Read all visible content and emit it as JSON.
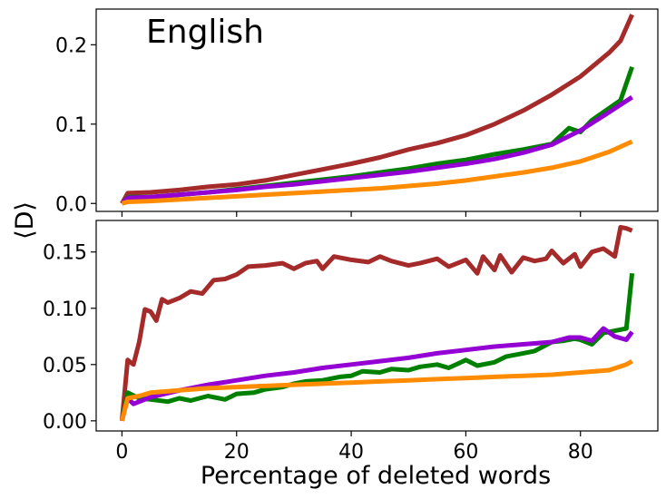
{
  "colors": {
    "brown": "#A52A2A",
    "green": "#008000",
    "purple": "#9400D3",
    "orange": "#FF8C00"
  },
  "chart_data": {
    "type": "line",
    "shared_ylabel": "⟨D⟩",
    "xlabel": "Percentage of deleted words",
    "x_ticks": [
      "0",
      "20",
      "40",
      "60",
      "80"
    ],
    "x_ticks_values": [
      0,
      20,
      40,
      60,
      80
    ],
    "xlim": [
      -4.5,
      93.5
    ],
    "panels": [
      {
        "panel_label": "English",
        "ylim": [
          -0.01,
          0.245
        ],
        "y_ticks": [
          "0.0",
          "0.1",
          "0.2"
        ],
        "y_ticks_values": [
          0.0,
          0.1,
          0.2
        ],
        "series": [
          {
            "color": "#A52A2A",
            "x": [
              0,
              1,
              5,
              10,
              15,
              20,
              25,
              30,
              35,
              40,
              45,
              50,
              55,
              60,
              65,
              70,
              75,
              80,
              85,
              87,
              89
            ],
            "values": [
              0.0,
              0.013,
              0.014,
              0.017,
              0.021,
              0.024,
              0.029,
              0.036,
              0.043,
              0.05,
              0.058,
              0.068,
              0.076,
              0.086,
              0.1,
              0.117,
              0.137,
              0.16,
              0.19,
              0.205,
              0.238
            ]
          },
          {
            "color": "#008000",
            "x": [
              0,
              1,
              5,
              10,
              15,
              20,
              25,
              30,
              35,
              40,
              45,
              50,
              55,
              60,
              65,
              70,
              75,
              78,
              80,
              82,
              85,
              87,
              89
            ],
            "values": [
              0.0,
              0.008,
              0.008,
              0.011,
              0.014,
              0.018,
              0.022,
              0.026,
              0.03,
              0.034,
              0.039,
              0.044,
              0.05,
              0.055,
              0.062,
              0.068,
              0.075,
              0.095,
              0.09,
              0.105,
              0.12,
              0.13,
              0.172
            ]
          },
          {
            "color": "#9400D3",
            "x": [
              0,
              1,
              5,
              10,
              15,
              20,
              25,
              30,
              35,
              40,
              45,
              50,
              55,
              60,
              65,
              70,
              75,
              80,
              85,
              89
            ],
            "values": [
              0.0,
              0.007,
              0.008,
              0.011,
              0.014,
              0.017,
              0.021,
              0.024,
              0.028,
              0.032,
              0.036,
              0.04,
              0.045,
              0.05,
              0.056,
              0.064,
              0.074,
              0.092,
              0.115,
              0.134
            ]
          },
          {
            "color": "#FF8C00",
            "x": [
              0,
              1,
              5,
              10,
              15,
              20,
              25,
              30,
              35,
              40,
              45,
              50,
              55,
              60,
              65,
              70,
              75,
              80,
              85,
              89
            ],
            "values": [
              0.0,
              0.002,
              0.003,
              0.005,
              0.007,
              0.009,
              0.011,
              0.013,
              0.015,
              0.017,
              0.019,
              0.022,
              0.025,
              0.029,
              0.034,
              0.039,
              0.045,
              0.053,
              0.065,
              0.078
            ]
          }
        ]
      },
      {
        "panel_label": "",
        "ylim": [
          -0.009,
          0.178
        ],
        "y_ticks": [
          "0.00",
          "0.05",
          "0.10",
          "0.15"
        ],
        "y_ticks_values": [
          0.0,
          0.05,
          0.1,
          0.15
        ],
        "series": [
          {
            "color": "#A52A2A",
            "x": [
              0,
              1,
              2,
              3,
              4,
              5,
              6,
              7,
              8,
              10,
              12,
              14,
              16,
              18,
              20,
              22,
              25,
              28,
              30,
              32,
              34,
              35,
              37,
              40,
              43,
              45,
              47,
              50,
              52,
              55,
              57,
              60,
              62,
              63,
              65,
              66,
              68,
              70,
              72,
              74,
              75,
              77,
              79,
              80,
              82,
              84,
              86,
              87,
              88,
              89
            ],
            "values": [
              0.0,
              0.054,
              0.05,
              0.07,
              0.099,
              0.097,
              0.089,
              0.108,
              0.105,
              0.109,
              0.115,
              0.113,
              0.125,
              0.126,
              0.13,
              0.137,
              0.138,
              0.14,
              0.135,
              0.14,
              0.142,
              0.135,
              0.146,
              0.143,
              0.141,
              0.146,
              0.142,
              0.138,
              0.14,
              0.144,
              0.137,
              0.143,
              0.131,
              0.146,
              0.134,
              0.147,
              0.132,
              0.145,
              0.142,
              0.144,
              0.151,
              0.14,
              0.148,
              0.137,
              0.15,
              0.153,
              0.146,
              0.172,
              0.171,
              0.169
            ]
          },
          {
            "color": "#008000",
            "x": [
              0,
              1,
              3,
              5,
              8,
              10,
              12,
              15,
              18,
              20,
              23,
              25,
              28,
              30,
              32,
              35,
              38,
              40,
              42,
              45,
              47,
              50,
              52,
              55,
              57,
              60,
              62,
              65,
              67,
              70,
              72,
              75,
              77,
              79,
              80,
              82,
              84,
              86,
              88,
              89
            ],
            "values": [
              0.0,
              0.025,
              0.02,
              0.019,
              0.017,
              0.02,
              0.018,
              0.022,
              0.019,
              0.024,
              0.025,
              0.028,
              0.03,
              0.033,
              0.035,
              0.036,
              0.039,
              0.04,
              0.044,
              0.043,
              0.046,
              0.045,
              0.048,
              0.05,
              0.047,
              0.054,
              0.049,
              0.052,
              0.057,
              0.06,
              0.062,
              0.07,
              0.071,
              0.073,
              0.072,
              0.068,
              0.078,
              0.08,
              0.082,
              0.131
            ]
          },
          {
            "color": "#9400D3",
            "x": [
              0,
              1,
              2,
              5,
              10,
              15,
              20,
              25,
              30,
              35,
              40,
              45,
              50,
              55,
              60,
              65,
              70,
              75,
              78,
              80,
              82,
              84,
              86,
              88,
              89
            ],
            "values": [
              0.0,
              0.02,
              0.015,
              0.021,
              0.027,
              0.032,
              0.036,
              0.04,
              0.043,
              0.047,
              0.05,
              0.053,
              0.056,
              0.06,
              0.063,
              0.066,
              0.068,
              0.07,
              0.074,
              0.074,
              0.071,
              0.082,
              0.075,
              0.072,
              0.079
            ]
          },
          {
            "color": "#FF8C00",
            "x": [
              0,
              1,
              3,
              5,
              10,
              15,
              20,
              25,
              30,
              35,
              40,
              45,
              50,
              55,
              60,
              65,
              70,
              75,
              80,
              85,
              88,
              89
            ],
            "values": [
              0.0,
              0.02,
              0.022,
              0.025,
              0.027,
              0.029,
              0.03,
              0.031,
              0.032,
              0.033,
              0.034,
              0.035,
              0.036,
              0.037,
              0.038,
              0.039,
              0.04,
              0.041,
              0.043,
              0.045,
              0.05,
              0.053
            ]
          }
        ]
      }
    ]
  }
}
